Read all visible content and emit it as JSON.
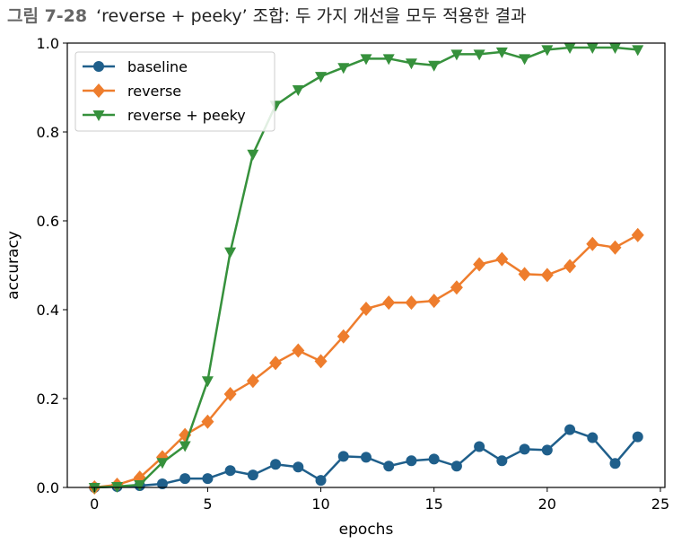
{
  "caption": {
    "figure_number": "그림 7-28",
    "text": "‘reverse + peeky’ 조합: 두 가지 개선을 모두 적용한 결과"
  },
  "chart_data": {
    "type": "line",
    "xlabel": "epochs",
    "ylabel": "accuracy",
    "xlim": [
      -1.2,
      25.2
    ],
    "ylim": [
      0.0,
      1.0
    ],
    "xticks": [
      0,
      5,
      10,
      15,
      20,
      25
    ],
    "yticks": [
      0.0,
      0.2,
      0.4,
      0.6,
      0.8,
      1.0
    ],
    "xtick_labels": [
      "0",
      "5",
      "10",
      "15",
      "20",
      "25"
    ],
    "ytick_labels": [
      "0.0",
      "0.2",
      "0.4",
      "0.6",
      "0.8",
      "1.0"
    ],
    "legend_position": "top-left",
    "x": [
      0,
      1,
      2,
      3,
      4,
      5,
      6,
      7,
      8,
      9,
      10,
      11,
      12,
      13,
      14,
      15,
      16,
      17,
      18,
      19,
      20,
      21,
      22,
      23,
      24
    ],
    "series": [
      {
        "name": "baseline",
        "color": "#1f5f8b",
        "marker": "circle",
        "values": [
          0.0,
          0.002,
          0.004,
          0.008,
          0.02,
          0.02,
          0.038,
          0.028,
          0.052,
          0.046,
          0.016,
          0.07,
          0.068,
          0.048,
          0.06,
          0.064,
          0.048,
          0.092,
          0.06,
          0.086,
          0.084,
          0.13,
          0.112,
          0.054,
          0.114
        ]
      },
      {
        "name": "reverse",
        "color": "#ee7d2d",
        "marker": "diamond",
        "values": [
          0.0,
          0.006,
          0.022,
          0.068,
          0.118,
          0.148,
          0.21,
          0.24,
          0.28,
          0.308,
          0.284,
          0.34,
          0.402,
          0.416,
          0.416,
          0.42,
          0.45,
          0.502,
          0.514,
          0.48,
          0.478,
          0.498,
          0.548,
          0.54,
          0.568
        ]
      },
      {
        "name": "reverse + peeky",
        "color": "#36913c",
        "marker": "triangle-down",
        "values": [
          0.0,
          0.002,
          0.006,
          0.056,
          0.094,
          0.24,
          0.53,
          0.75,
          0.86,
          0.895,
          0.925,
          0.945,
          0.965,
          0.965,
          0.955,
          0.95,
          0.975,
          0.975,
          0.98,
          0.965,
          0.985,
          0.99,
          0.99,
          0.99,
          0.985
        ]
      }
    ]
  }
}
